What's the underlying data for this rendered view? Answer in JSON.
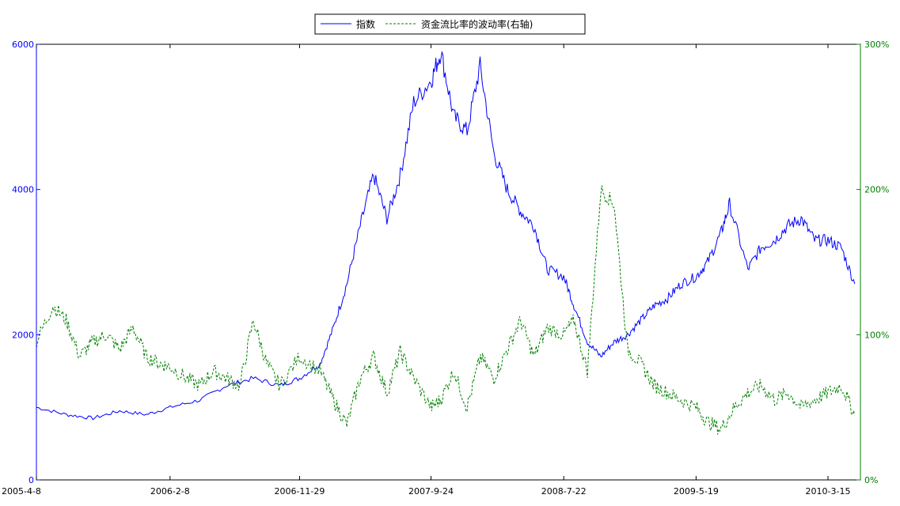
{
  "chart_data": {
    "type": "line",
    "legend": {
      "placement": "top-center",
      "entries": [
        {
          "label": "指数",
          "color": "#0000ff",
          "style": "solid"
        },
        {
          "label": "资金流比率的波动率(右轴)",
          "color": "#008000",
          "style": "dashed"
        }
      ]
    },
    "x_ticks": [
      "2005-4-8",
      "2006-2-8",
      "2006-11-29",
      "2007-9-24",
      "2008-7-22",
      "2009-5-19",
      "2010-3-15"
    ],
    "left_axis": {
      "range": [
        0,
        6000
      ],
      "ticks": [
        "0",
        "2000",
        "4000",
        "6000"
      ],
      "color": "#0000ff"
    },
    "right_axis": {
      "range": [
        0,
        300
      ],
      "ticks": [
        "0%",
        "100%",
        "200%",
        "300%"
      ],
      "color": "#008000"
    },
    "grid": false,
    "series": [
      {
        "name": "指数",
        "axis": "left",
        "color": "#0000ff",
        "x": [
          "2005-4-8",
          "2005-6",
          "2005-8",
          "2005-10",
          "2005-12",
          "2006-2-8",
          "2006-4",
          "2006-6",
          "2006-8",
          "2006-10",
          "2006-11-29",
          "2007-1",
          "2007-2",
          "2007-3",
          "2007-4",
          "2007-5",
          "2007-6",
          "2007-7",
          "2007-8",
          "2007-9-24",
          "2007-10-16",
          "2007-11",
          "2007-12",
          "2008-1-14",
          "2008-2",
          "2008-3",
          "2008-4",
          "2008-5",
          "2008-6",
          "2008-7-22",
          "2008-8",
          "2008-9",
          "2008-10",
          "2008-11",
          "2008-12",
          "2009-1",
          "2009-2",
          "2009-3",
          "2009-4",
          "2009-5-19",
          "2009-6",
          "2009-7",
          "2009-8-4",
          "2009-9",
          "2009-10",
          "2009-11",
          "2009-12",
          "2010-1",
          "2010-2",
          "2010-3-15",
          "2010-4",
          "2010-5"
        ],
        "values": [
          1000,
          900,
          850,
          950,
          900,
          1000,
          1100,
          1300,
          1400,
          1300,
          1400,
          1600,
          2100,
          2700,
          3500,
          4200,
          3600,
          4200,
          5200,
          5500,
          5900,
          5000,
          4800,
          5700,
          4500,
          4000,
          3700,
          3500,
          2900,
          2800,
          2400,
          1900,
          1700,
          1900,
          2000,
          2200,
          2400,
          2500,
          2700,
          2800,
          3000,
          3400,
          3800,
          2900,
          3200,
          3300,
          3500,
          3600,
          3300,
          3300,
          3200,
          2700
        ]
      },
      {
        "name": "资金流比率的波动率(右轴)",
        "axis": "right",
        "color": "#008000",
        "x": [
          "2005-4-8",
          "2005-5",
          "2005-6",
          "2005-7",
          "2005-8",
          "2005-9",
          "2005-10",
          "2005-11",
          "2005-12",
          "2006-1",
          "2006-2-8",
          "2006-3",
          "2006-4",
          "2006-5",
          "2006-6",
          "2006-7",
          "2006-8",
          "2006-9",
          "2006-10",
          "2006-11-29",
          "2007-1",
          "2007-2",
          "2007-3",
          "2007-4",
          "2007-5",
          "2007-6",
          "2007-7",
          "2007-8",
          "2007-9-24",
          "2007-10",
          "2007-11",
          "2007-12",
          "2008-1",
          "2008-2",
          "2008-3",
          "2008-4",
          "2008-5",
          "2008-6",
          "2008-7-22",
          "2008-8",
          "2008-9",
          "2008-10",
          "2008-11",
          "2008-12",
          "2009-1",
          "2009-2",
          "2009-3",
          "2009-4",
          "2009-5-19",
          "2009-6",
          "2009-7",
          "2009-8",
          "2009-9",
          "2009-10",
          "2009-11",
          "2009-12",
          "2010-1",
          "2010-2",
          "2010-3-15",
          "2010-4",
          "2010-5"
        ],
        "values": [
          95,
          120,
          110,
          85,
          95,
          100,
          90,
          105,
          85,
          80,
          78,
          70,
          65,
          75,
          70,
          65,
          110,
          80,
          65,
          85,
          75,
          55,
          38,
          70,
          85,
          60,
          88,
          70,
          50,
          55,
          75,
          50,
          85,
          70,
          90,
          110,
          85,
          105,
          100,
          110,
          75,
          200,
          190,
          90,
          80,
          65,
          60,
          55,
          50,
          40,
          35,
          50,
          60,
          65,
          55,
          60,
          50,
          55,
          60,
          65,
          45
        ]
      }
    ]
  }
}
